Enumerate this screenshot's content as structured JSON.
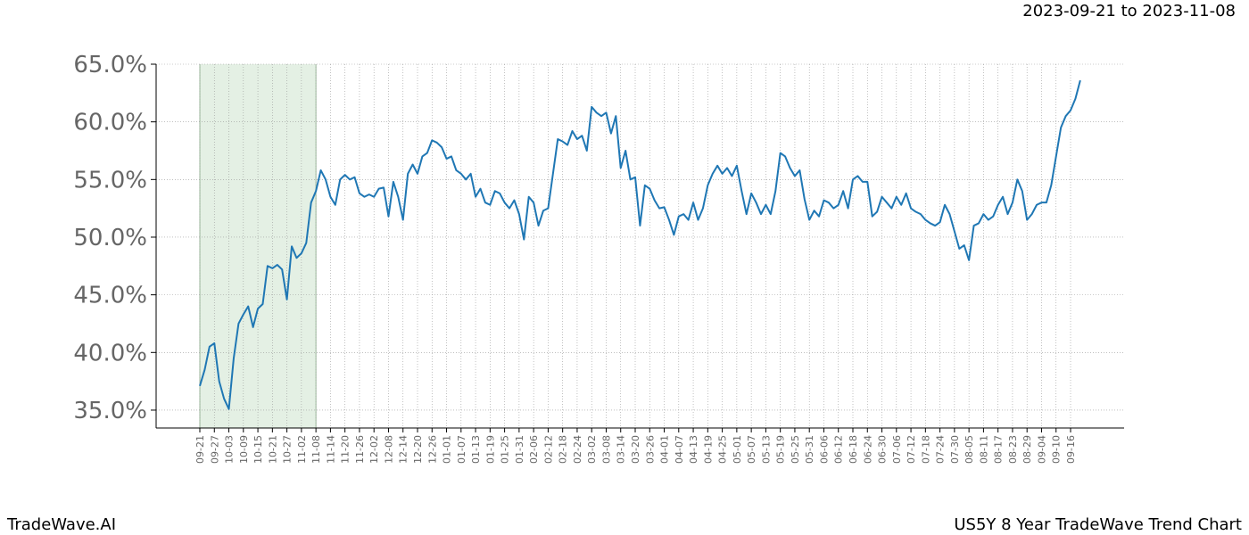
{
  "chart_data": {
    "type": "line",
    "title": "2023-09-21 to 2023-11-08",
    "brand": "TradeWave.AI",
    "chart_name": "US5Y 8 Year TradeWave Trend Chart",
    "categories": [
      "09-21",
      null,
      null,
      "09-27",
      null,
      null,
      "10-03",
      null,
      null,
      "10-09",
      null,
      null,
      "10-15",
      null,
      null,
      "10-21",
      null,
      null,
      "10-27",
      null,
      null,
      "11-02",
      null,
      null,
      "11-08",
      null,
      null,
      "11-14",
      null,
      null,
      "11-20",
      null,
      null,
      "11-26",
      null,
      null,
      "12-02",
      null,
      null,
      "12-08",
      null,
      null,
      "12-14",
      null,
      null,
      "12-20",
      null,
      null,
      "12-26",
      null,
      null,
      "01-01",
      null,
      null,
      "01-07",
      null,
      null,
      "01-13",
      null,
      null,
      "01-19",
      null,
      null,
      "01-25",
      null,
      null,
      "01-31",
      null,
      null,
      "02-06",
      null,
      null,
      "02-12",
      null,
      null,
      "02-18",
      null,
      null,
      "02-24",
      null,
      null,
      "03-02",
      null,
      null,
      "03-08",
      null,
      null,
      "03-14",
      null,
      null,
      "03-20",
      null,
      null,
      "03-26",
      null,
      null,
      "04-01",
      null,
      null,
      "04-07",
      null,
      null,
      "04-13",
      null,
      null,
      "04-19",
      null,
      null,
      "04-25",
      null,
      null,
      "05-01",
      null,
      null,
      "05-07",
      null,
      null,
      "05-13",
      null,
      null,
      "05-19",
      null,
      null,
      "05-25",
      null,
      null,
      "05-31",
      null,
      null,
      "06-06",
      null,
      null,
      "06-12",
      null,
      null,
      "06-18",
      null,
      null,
      "06-24",
      null,
      null,
      "06-30",
      null,
      null,
      "07-06",
      null,
      null,
      "07-12",
      null,
      null,
      "07-18",
      null,
      null,
      "07-24",
      null,
      null,
      "07-30",
      null,
      null,
      "08-05",
      null,
      null,
      "08-11",
      null,
      null,
      "08-17",
      null,
      null,
      "08-23",
      null,
      null,
      "08-29",
      null,
      null,
      "09-04",
      null,
      null,
      "09-10",
      null,
      null,
      "09-16",
      null,
      null
    ],
    "values": [
      37.1,
      38.5,
      40.5,
      40.8,
      37.5,
      36.0,
      35.1,
      39.5,
      42.5,
      43.3,
      44.0,
      42.2,
      43.8,
      44.2,
      47.5,
      47.3,
      47.6,
      47.2,
      44.6,
      49.2,
      48.2,
      48.6,
      49.5,
      53.0,
      54.0,
      55.8,
      55.0,
      53.5,
      52.8,
      55.0,
      55.4,
      55.0,
      55.2,
      53.8,
      53.5,
      53.7,
      53.5,
      54.2,
      54.3,
      51.8,
      54.8,
      53.5,
      51.5,
      55.5,
      56.3,
      55.5,
      57.0,
      57.3,
      58.4,
      58.2,
      57.8,
      56.8,
      57.0,
      55.8,
      55.5,
      55.0,
      55.5,
      53.5,
      54.2,
      53.0,
      52.8,
      54.0,
      53.8,
      53.0,
      52.5,
      53.2,
      52.0,
      49.8,
      53.5,
      53.0,
      51.0,
      52.3,
      52.5,
      55.5,
      58.5,
      58.3,
      58.0,
      59.2,
      58.5,
      58.8,
      57.5,
      61.3,
      60.8,
      60.5,
      60.8,
      59.0,
      60.5,
      56.0,
      57.5,
      55.0,
      55.2,
      51.0,
      54.5,
      54.2,
      53.2,
      52.5,
      52.6,
      51.5,
      50.2,
      51.8,
      52.0,
      51.5,
      53.0,
      51.5,
      52.5,
      54.5,
      55.5,
      56.2,
      55.5,
      56.0,
      55.3,
      56.2,
      54.0,
      52.0,
      53.8,
      53.0,
      52.0,
      52.8,
      52.0,
      54.0,
      57.3,
      57.0,
      56.0,
      55.3,
      55.8,
      53.3,
      51.5,
      52.3,
      51.8,
      53.2,
      53.0,
      52.5,
      52.8,
      54.0,
      52.5,
      55.0,
      55.3,
      54.8,
      54.8,
      51.8,
      52.2,
      53.5,
      53.0,
      52.5,
      53.5,
      52.8,
      53.8,
      52.5,
      52.2,
      52.0,
      51.5,
      51.2,
      51.0,
      51.3,
      52.8,
      52.0,
      50.5,
      49.0,
      49.3,
      48.0,
      51.0,
      51.2,
      52.0,
      51.5,
      51.8,
      52.8,
      53.5,
      52.0,
      53.0,
      55.0,
      54.0,
      51.5,
      52.0,
      52.8,
      53.0,
      53.0,
      54.5,
      57.0,
      59.5,
      60.5,
      61.0,
      62.0,
      63.6
    ],
    "color": "#1f77b4",
    "shade_from": "09-21",
    "shade_to": "11-08",
    "shade_color": "#e4f0e4",
    "ylim": [
      33.45,
      65
    ],
    "yticks": [
      {
        "value": 35,
        "label": "35.0%"
      },
      {
        "value": 40,
        "label": "40.0%"
      },
      {
        "value": 45,
        "label": "45.0%"
      },
      {
        "value": 50,
        "label": "50.0%"
      },
      {
        "value": 55,
        "label": "55.0%"
      },
      {
        "value": 60,
        "label": "60.0%"
      },
      {
        "value": 65,
        "label": "65.0%"
      }
    ],
    "grid": true
  }
}
